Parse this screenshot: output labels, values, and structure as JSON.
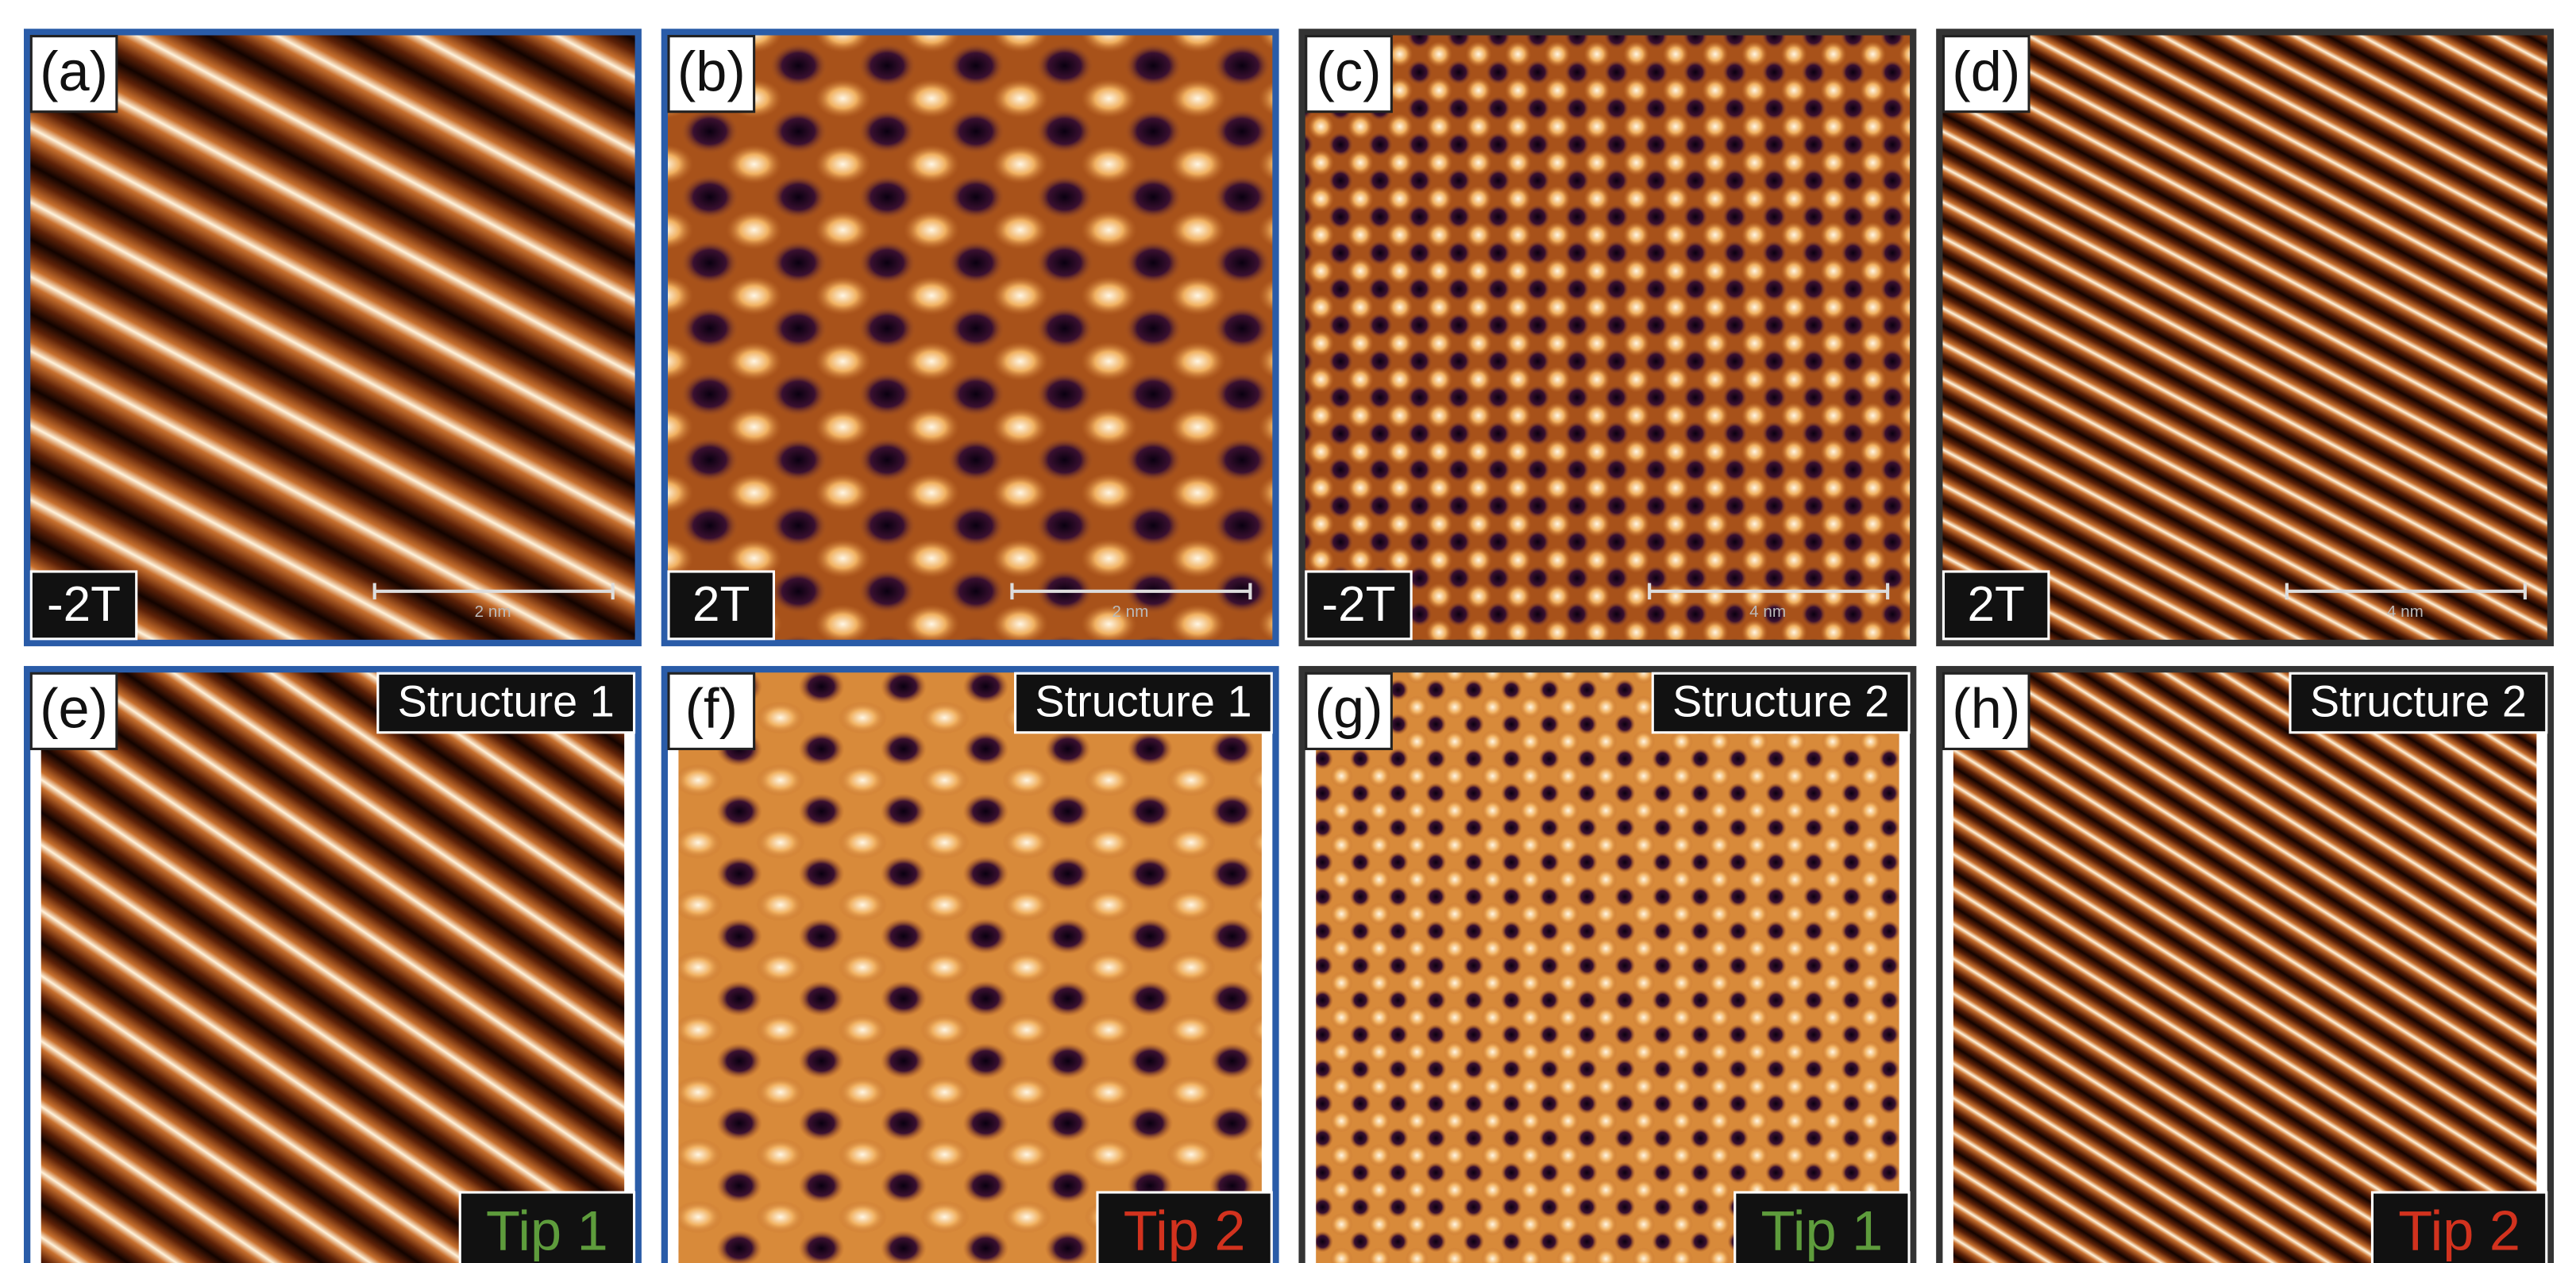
{
  "panels": [
    {
      "label": "(a)",
      "field": "-2T",
      "scale_bar": "2 nm"
    },
    {
      "label": "(b)",
      "field": "2T",
      "scale_bar": "2 nm"
    },
    {
      "label": "(c)",
      "field": "-2T",
      "scale_bar": "4 nm"
    },
    {
      "label": "(d)",
      "field": "2T",
      "scale_bar": "4 nm"
    },
    {
      "label": "(e)",
      "structure": "Structure 1",
      "tip": "Tip 1",
      "tip_color": "#5e9c3c"
    },
    {
      "label": "(f)",
      "structure": "Structure 1",
      "tip": "Tip 2",
      "tip_color": "#d2321e"
    },
    {
      "label": "(g)",
      "structure": "Structure 2",
      "tip": "Tip 1",
      "tip_color": "#5e9c3c"
    },
    {
      "label": "(h)",
      "structure": "Structure 2",
      "tip": "Tip 2",
      "tip_color": "#d2321e"
    }
  ]
}
